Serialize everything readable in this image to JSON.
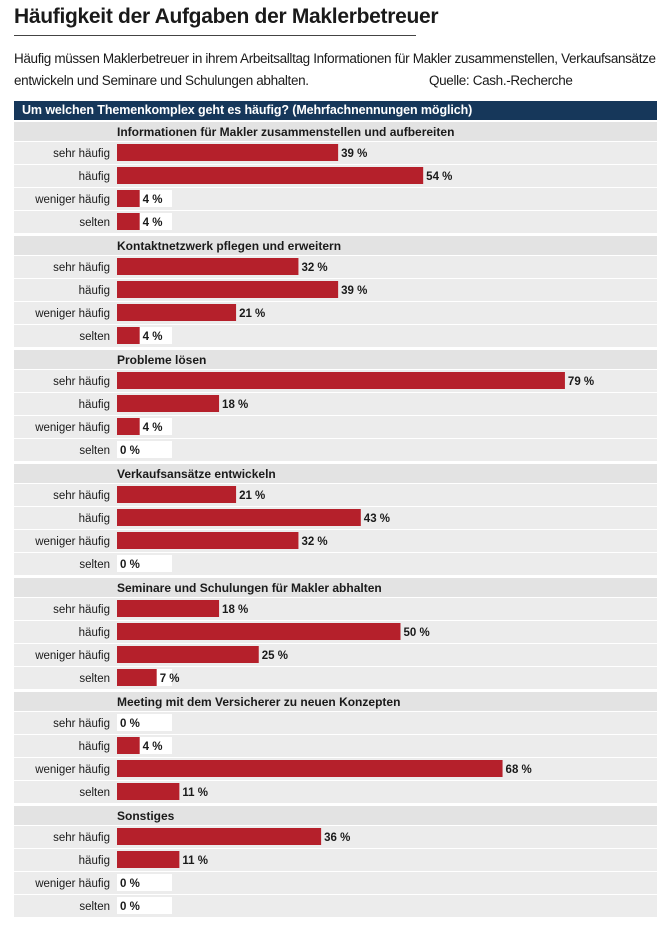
{
  "header": {
    "title": "Häufigkeit der Aufgaben der Maklerbetreuer",
    "subtitle_line1": "Häufig müssen Maklerbetreuer in ihrem Arbeitsalltag Informationen für Makler zusammenstellen, Verkaufsansätze",
    "subtitle_line2": "entwickeln und Seminare und Schulungen abhalten.",
    "source": "Quelle: Cash.-Recherche"
  },
  "question": "Um welchen Themenkomplex geht es häufig? (Mehrfachnennungen möglich)",
  "colors": {
    "bar": "#b5202b",
    "header_bg": "#16375a",
    "group_bg": "#e3e3e3",
    "row_bg": "#ececec"
  },
  "chart_data": {
    "type": "bar",
    "orientation": "horizontal",
    "unit": "%",
    "xlim": [
      0,
      100
    ],
    "categories": [
      "sehr häufig",
      "häufig",
      "weniger häufig",
      "selten"
    ],
    "groups": [
      {
        "title": "Informationen für Makler zusammenstellen und aufbereiten",
        "values": [
          39,
          54,
          4,
          4
        ]
      },
      {
        "title": "Kontaktnetzwerk pflegen und erweitern",
        "values": [
          32,
          39,
          21,
          4
        ]
      },
      {
        "title": "Probleme lösen",
        "values": [
          79,
          18,
          4,
          0
        ]
      },
      {
        "title": "Verkaufsansätze entwickeln",
        "values": [
          21,
          43,
          32,
          0
        ]
      },
      {
        "title": "Seminare und Schulungen für Makler abhalten",
        "values": [
          18,
          50,
          25,
          7
        ]
      },
      {
        "title": "Meeting mit dem Versicherer zu neuen Konzepten",
        "values": [
          0,
          4,
          68,
          11
        ]
      },
      {
        "title": "Sonstiges",
        "values": [
          36,
          11,
          0,
          0
        ]
      }
    ]
  }
}
